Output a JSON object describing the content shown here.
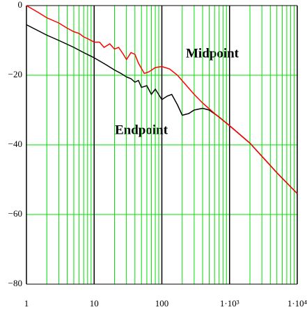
{
  "chart_data": {
    "type": "line",
    "log_x": true,
    "grid": true,
    "annotations": [
      "Midpoint",
      "Endpoint"
    ],
    "xlim": [
      1,
      10000
    ],
    "xticks": [
      1,
      10,
      100,
      {
        "value": 1000,
        "label": "1·10³"
      },
      {
        "value": 10000,
        "label": "1·10⁴"
      }
    ],
    "ylim": [
      -80,
      0
    ],
    "yticks": [
      0,
      {
        "value": -20,
        "label": "−20"
      },
      {
        "value": -40,
        "label": "−40"
      },
      {
        "value": -60,
        "label": "−60"
      },
      {
        "value": -80,
        "label": "−80"
      }
    ],
    "series": [
      {
        "name": "Midpoint",
        "color": "#ff0000",
        "x": [
          1,
          1.5,
          2,
          3,
          4,
          5,
          6,
          7,
          8,
          10,
          12,
          14,
          17,
          20,
          23,
          27,
          30,
          35,
          40,
          45,
          55,
          65,
          80,
          100,
          130,
          170,
          220,
          300,
          400,
          600,
          1000,
          2000,
          5000,
          10000
        ],
        "values": [
          0,
          -2,
          -3.5,
          -5,
          -6.5,
          -7.5,
          -8,
          -9,
          -9.5,
          -10.5,
          -10.5,
          -12,
          -11,
          -12.5,
          -12,
          -14,
          -15.5,
          -13.5,
          -14,
          -16.5,
          -19.5,
          -19,
          -17.8,
          -17.5,
          -18.2,
          -20,
          -22.5,
          -25.5,
          -28,
          -31,
          -34.5,
          -39.5,
          -48,
          -54
        ]
      },
      {
        "name": "Endpoint",
        "color": "#000000",
        "x": [
          1,
          2,
          3,
          5,
          7,
          10,
          15,
          20,
          25,
          30,
          35,
          40,
          45,
          50,
          60,
          70,
          80,
          100,
          120,
          140,
          170,
          200,
          250,
          300,
          400,
          500,
          700,
          1000,
          2000,
          5000,
          10000
        ],
        "values": [
          -5.5,
          -8.5,
          -10,
          -12,
          -13.5,
          -15,
          -17,
          -18.5,
          -19.5,
          -20.5,
          -21,
          -22,
          -21.5,
          -23.5,
          -23,
          -25.5,
          -24,
          -27,
          -26,
          -25.5,
          -28.5,
          -31.5,
          -31,
          -30,
          -29.5,
          -30,
          -32,
          -34.5,
          -39.5,
          -48,
          -54
        ]
      }
    ]
  }
}
